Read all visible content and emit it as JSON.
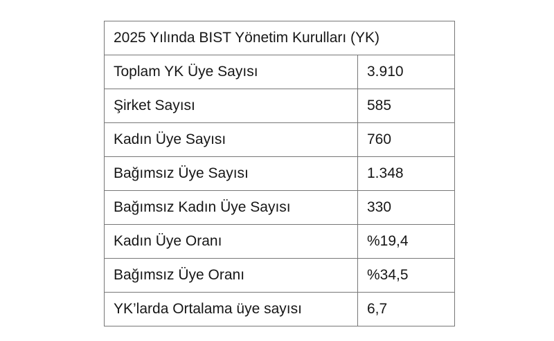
{
  "table": {
    "title": "2025 Yılında BIST Yönetim Kurulları (YK)",
    "rows": [
      {
        "label": "Toplam YK Üye Sayısı",
        "value": "3.910"
      },
      {
        "label": "Şirket Sayısı",
        "value": "585"
      },
      {
        "label": "Kadın Üye Sayısı",
        "value": "760"
      },
      {
        "label": "Bağımsız Üye Sayısı",
        "value": "1.348"
      },
      {
        "label": "Bağımsız Kadın Üye Sayısı",
        "value": "330"
      },
      {
        "label": "Kadın Üye Oranı",
        "value": "%19,4"
      },
      {
        "label": "Bağımsız Üye Oranı",
        "value": "%34,5"
      },
      {
        "label": "YK’larda Ortalama üye sayısı",
        "value": "6,7"
      }
    ]
  },
  "chart_data": {
    "type": "table",
    "title": "2025 Yılında BIST Yönetim Kurulları (YK)",
    "rows": [
      [
        "Toplam YK Üye Sayısı",
        "3.910"
      ],
      [
        "Şirket Sayısı",
        "585"
      ],
      [
        "Kadın Üye Sayısı",
        "760"
      ],
      [
        "Bağımsız Üye Sayısı",
        "1.348"
      ],
      [
        "Bağımsız Kadın Üye Sayısı",
        "330"
      ],
      [
        "Kadın Üye Oranı",
        "%19,4"
      ],
      [
        "Bağımsız Üye Oranı",
        "%34,5"
      ],
      [
        "YK’larda Ortalama üye sayısı",
        "6,7"
      ]
    ],
    "values_numeric": {
      "toplam_yk_uye_sayisi": 3910,
      "sirket_sayisi": 585,
      "kadin_uye_sayisi": 760,
      "bagimsiz_uye_sayisi": 1348,
      "bagimsiz_kadin_uye_sayisi": 330,
      "kadin_uye_orani_pct": 19.4,
      "bagimsiz_uye_orani_pct": 34.5,
      "yklarda_ortalama_uye_sayisi": 6.7
    },
    "layout": {
      "grid": "full-borders",
      "header_row_spans_columns": true
    }
  },
  "colors": {
    "background": "#ffffff",
    "border": "#767676",
    "text": "#161616"
  }
}
